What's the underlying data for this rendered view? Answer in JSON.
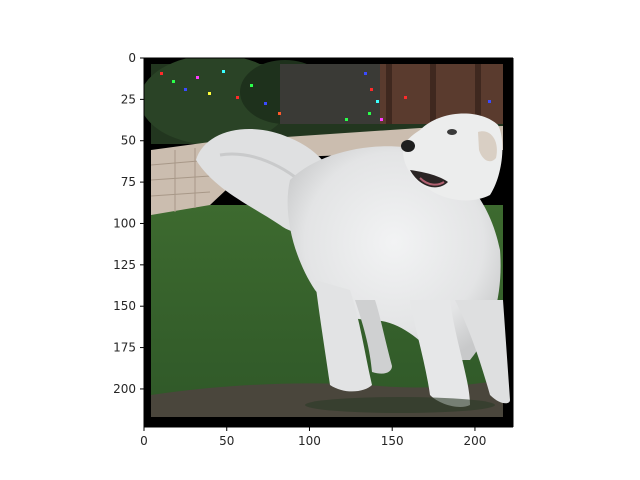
{
  "image": {
    "description_tag": "photo",
    "frame_color": "#000000",
    "x_range": [
      0,
      223
    ],
    "y_range": [
      0,
      223
    ],
    "x_ticks": [
      {
        "value": 0,
        "label": "0"
      },
      {
        "value": 50,
        "label": "50"
      },
      {
        "value": 100,
        "label": "100"
      },
      {
        "value": 150,
        "label": "150"
      },
      {
        "value": 200,
        "label": "200"
      }
    ],
    "y_ticks": [
      {
        "value": 0,
        "label": "0"
      },
      {
        "value": 25,
        "label": "25"
      },
      {
        "value": 50,
        "label": "50"
      },
      {
        "value": 75,
        "label": "75"
      },
      {
        "value": 100,
        "label": "100"
      },
      {
        "value": 125,
        "label": "125"
      },
      {
        "value": 150,
        "label": "150"
      },
      {
        "value": 175,
        "label": "175"
      },
      {
        "value": 200,
        "label": "200"
      }
    ],
    "colors": {
      "grass": "#3f6f32",
      "grass_dark": "#2e5626",
      "path": "#4a463c",
      "wall": "#cdbfb0",
      "fence": "#5a3b2e",
      "dog": "#e8e9ea",
      "dog_shadow": "#c9cacb",
      "foliage": "#21351f"
    }
  }
}
